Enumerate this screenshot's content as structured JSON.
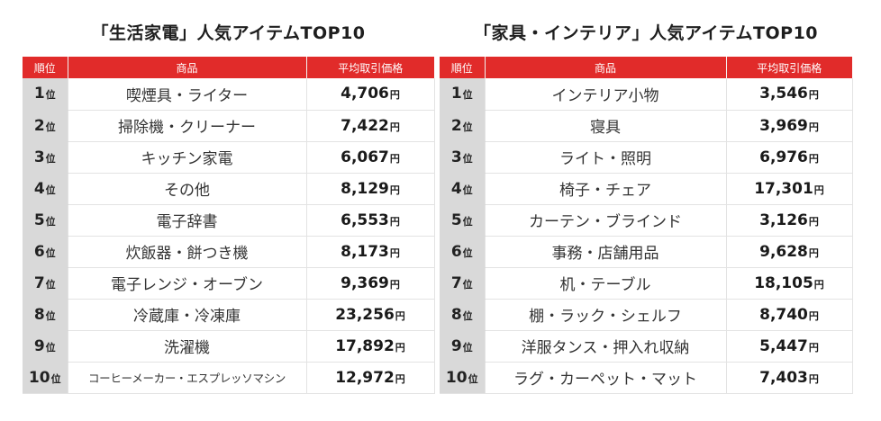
{
  "colors": {
    "header_bg": "#e12b2a",
    "rank_bg": "#d9d9d9",
    "grid": "#e3e3e3"
  },
  "rank_unit": "位",
  "price_unit": "円",
  "left": {
    "title": "「生活家電」人気アイテムTOP10",
    "headers": {
      "rank": "順位",
      "item": "商品",
      "price": "平均取引価格"
    },
    "rows": [
      {
        "rank": "1",
        "item": "喫煙具・ライター",
        "price": "4,706"
      },
      {
        "rank": "2",
        "item": "掃除機・クリーナー",
        "price": "7,422"
      },
      {
        "rank": "3",
        "item": "キッチン家電",
        "price": "6,067"
      },
      {
        "rank": "4",
        "item": "その他",
        "price": "8,129"
      },
      {
        "rank": "5",
        "item": "電子辞書",
        "price": "6,553"
      },
      {
        "rank": "6",
        "item": "炊飯器・餅つき機",
        "price": "8,173"
      },
      {
        "rank": "7",
        "item": "電子レンジ・オーブン",
        "price": "9,369"
      },
      {
        "rank": "8",
        "item": "冷蔵庫・冷凍庫",
        "price": "23,256"
      },
      {
        "rank": "9",
        "item": "洗濯機",
        "price": "17,892"
      },
      {
        "rank": "10",
        "item": "コーヒーメーカー・エスプレッソマシン",
        "price": "12,972"
      }
    ]
  },
  "right": {
    "title": "「家具・インテリア」人気アイテムTOP10",
    "headers": {
      "rank": "順位",
      "item": "商品",
      "price": "平均取引価格"
    },
    "rows": [
      {
        "rank": "1",
        "item": "インテリア小物",
        "price": "3,546"
      },
      {
        "rank": "2",
        "item": "寝具",
        "price": "3,969"
      },
      {
        "rank": "3",
        "item": "ライト・照明",
        "price": "6,976"
      },
      {
        "rank": "4",
        "item": "椅子・チェア",
        "price": "17,301"
      },
      {
        "rank": "5",
        "item": "カーテン・ブラインド",
        "price": "3,126"
      },
      {
        "rank": "6",
        "item": "事務・店舗用品",
        "price": "9,628"
      },
      {
        "rank": "7",
        "item": "机・テーブル",
        "price": "18,105"
      },
      {
        "rank": "8",
        "item": "棚・ラック・シェルフ",
        "price": "8,740"
      },
      {
        "rank": "9",
        "item": "洋服タンス・押入れ収納",
        "price": "5,447"
      },
      {
        "rank": "10",
        "item": "ラグ・カーペット・マット",
        "price": "7,403"
      }
    ]
  }
}
